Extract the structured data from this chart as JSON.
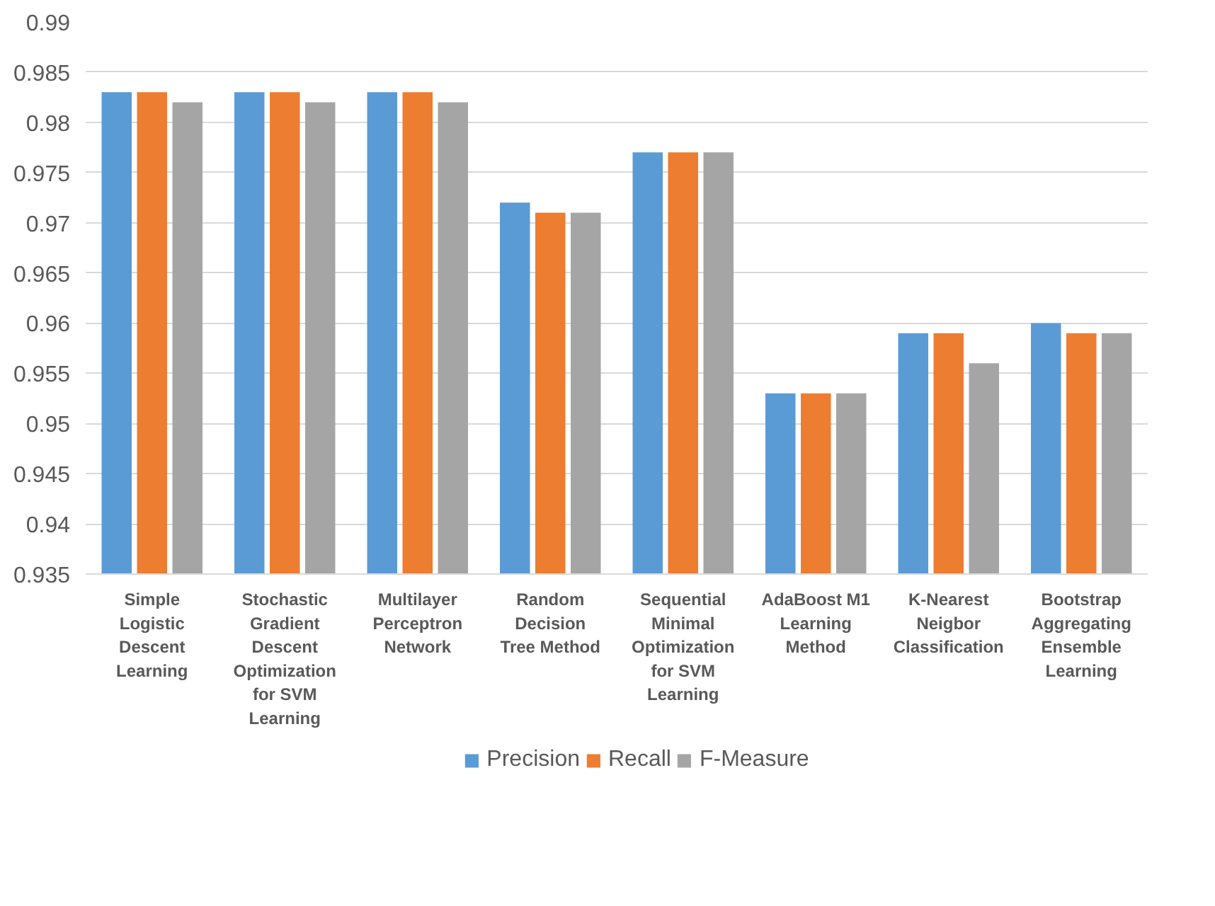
{
  "chart_data": {
    "type": "bar",
    "categories": [
      "Simple Logistic Descent Learning",
      "Stochastic Gradient Descent Optimization for SVM Learning",
      "Multilayer Perceptron Network",
      "Random Decision Tree Method",
      "Sequential Minimal Optimization for SVM Learning",
      "AdaBoost M1 Learning Method",
      "K-Nearest Neigbor Classification",
      "Bootstrap Aggregating Ensemble Learning"
    ],
    "series": [
      {
        "name": "Precision",
        "color": "#5b9bd5",
        "values": [
          0.983,
          0.983,
          0.983,
          0.972,
          0.977,
          0.953,
          0.959,
          0.96
        ]
      },
      {
        "name": "Recall",
        "color": "#ed7d31",
        "values": [
          0.983,
          0.983,
          0.983,
          0.971,
          0.977,
          0.953,
          0.959,
          0.959
        ]
      },
      {
        "name": "F-Measure",
        "color": "#a5a5a5",
        "values": [
          0.982,
          0.982,
          0.982,
          0.971,
          0.977,
          0.953,
          0.956,
          0.959
        ]
      }
    ],
    "ylim": [
      0.935,
      0.99
    ],
    "yticks": [
      0.935,
      0.94,
      0.945,
      0.95,
      0.955,
      0.96,
      0.965,
      0.97,
      0.975,
      0.98,
      0.985,
      0.99
    ],
    "grid": "y",
    "legend": "bottom"
  }
}
